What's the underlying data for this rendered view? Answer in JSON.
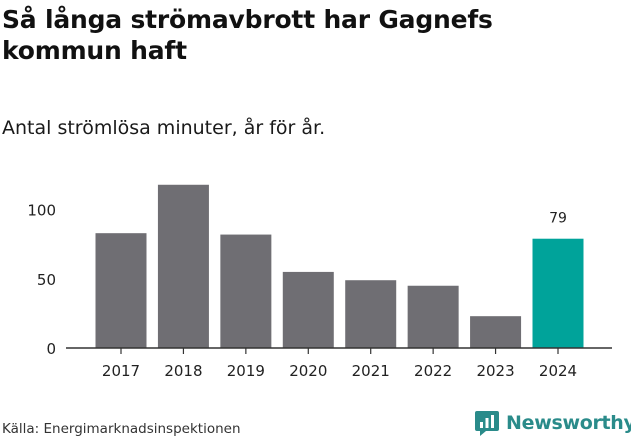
{
  "header": {
    "title": "Så långa strömavbrott har Gagnefs kommun haft",
    "subtitle": "Antal strömlösa minuter, år för år."
  },
  "footer": {
    "source": "Källa: Energimarknadsinspektionen",
    "brand_name": "Newsworthy"
  },
  "colors": {
    "bar": "#6f6e73",
    "highlight": "#00a39a",
    "axis": "#333333",
    "brand": "#2a8b8a"
  },
  "chart_data": {
    "type": "bar",
    "categories": [
      "2017",
      "2018",
      "2019",
      "2020",
      "2021",
      "2022",
      "2023",
      "2024"
    ],
    "values": [
      83,
      118,
      82,
      55,
      49,
      45,
      23,
      79
    ],
    "ylim": [
      0,
      120
    ],
    "yticks": [
      0,
      50,
      100
    ],
    "highlight_index": 7,
    "data_labels": [
      {
        "index": 7,
        "text": "79"
      }
    ],
    "grid": false,
    "legend": "none"
  }
}
